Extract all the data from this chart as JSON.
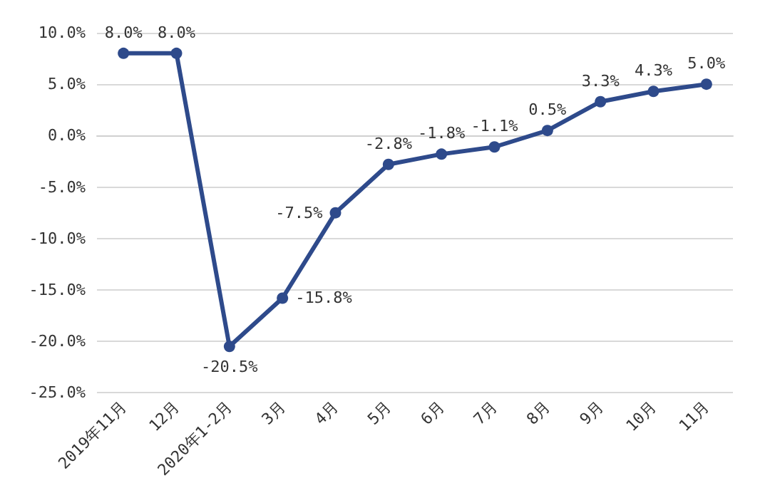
{
  "chart_data": {
    "type": "line",
    "categories": [
      "2019年11月",
      "12月",
      "2020年1-2月",
      "3月",
      "4月",
      "5月",
      "6月",
      "7月",
      "8月",
      "9月",
      "10月",
      "11月"
    ],
    "series": [
      {
        "color": "#2e4a8b",
        "values": [
          8.0,
          8.0,
          -20.5,
          -15.8,
          -7.5,
          -2.8,
          -1.8,
          -1.1,
          0.5,
          3.3,
          4.3,
          5.0
        ],
        "value_labels": [
          "8.0%",
          "8.0%",
          "-20.5%",
          "-15.8%",
          "-7.5%",
          "-2.8%",
          "-1.8%",
          "-1.1%",
          "0.5%",
          "3.3%",
          "4.3%",
          "5.0%"
        ]
      }
    ],
    "ylim": [
      -25,
      10
    ],
    "yticks": [
      {
        "value": -25,
        "label": "-25.0%"
      },
      {
        "value": -20,
        "label": "-20.0%"
      },
      {
        "value": -15,
        "label": "-15.0%"
      },
      {
        "value": -10,
        "label": "-10.0%"
      },
      {
        "value": -5,
        "label": "-5.0%"
      },
      {
        "value": 0,
        "label": "0.0%"
      },
      {
        "value": 5,
        "label": "5.0%"
      },
      {
        "value": 10,
        "label": "10.0%"
      }
    ],
    "grid": "y",
    "marker": "circle",
    "line_style": "solid"
  }
}
